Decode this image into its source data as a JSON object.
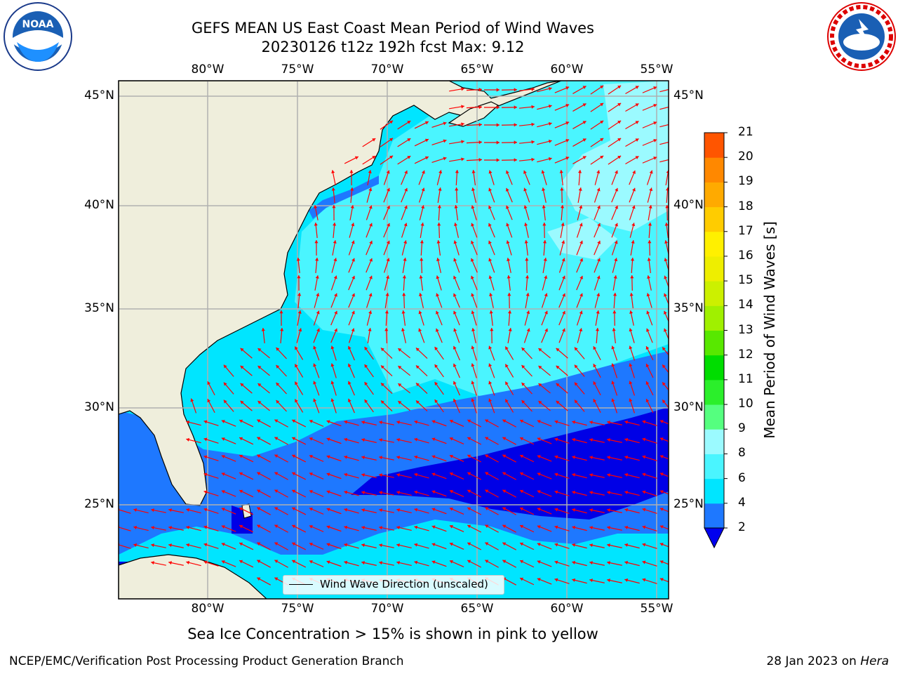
{
  "title": {
    "line1": "GEFS MEAN US East Coast Mean Period of Wind Waves",
    "line2": "20230126 t12z 192h fcst   Max: 9.12"
  },
  "axes": {
    "lon_labels": [
      "80°W",
      "75°W",
      "70°W",
      "65°W",
      "60°W",
      "55°W"
    ],
    "lat_labels": [
      "45°N",
      "40°N",
      "35°N",
      "30°N",
      "25°N"
    ]
  },
  "legend": {
    "label": "Wind Wave Direction (unscaled)"
  },
  "colorbar": {
    "title": "Mean Period of Wind Waves [s]",
    "ticks": [
      "2",
      "4",
      "6",
      "8",
      "9",
      "10",
      "11",
      "12",
      "13",
      "14",
      "15",
      "16",
      "17",
      "18",
      "19",
      "20",
      "21"
    ],
    "colors": [
      "#0000ee",
      "#1e78ff",
      "#00e5ff",
      "#4af5ff",
      "#9bfaff",
      "#55ff7f",
      "#2bef2b",
      "#00dd00",
      "#58e800",
      "#a0f000",
      "#ccf000",
      "#eeee00",
      "#fff000",
      "#ffcc00",
      "#ffaa00",
      "#ff8800",
      "#ff5500",
      "#ff2200"
    ]
  },
  "field_colors": {
    "land": "#efeedc",
    "period_lt2": "#0000e6",
    "period_2_4": "#1e78ff",
    "period_4_6": "#00e5ff",
    "period_6_8": "#4af5ff",
    "period_8_9": "#9bfaff",
    "arrow": "#ff0000"
  },
  "subtitle": "Sea Ice Concentration > 15% is shown in pink to yellow",
  "footer": {
    "left": "NCEP/EMC/Verification Post Processing Product Generation Branch",
    "right_date": "28 Jan 2023 on ",
    "right_host": "Hera"
  },
  "logos": {
    "left": "noaa-logo",
    "right": "national-weather-service-logo"
  }
}
